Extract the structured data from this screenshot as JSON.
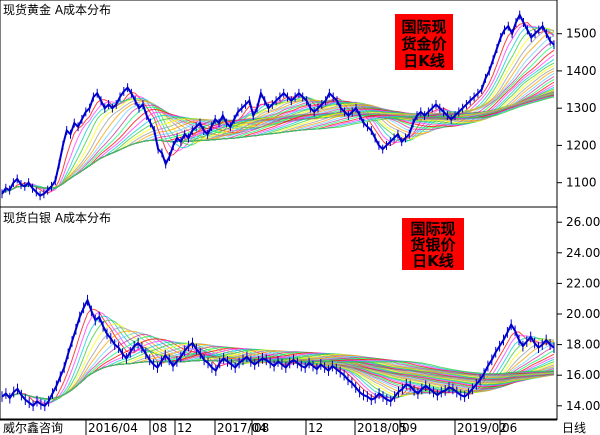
{
  "chart_data": [
    {
      "type": "line",
      "title": "现货黄金 A成本分布",
      "annotation": [
        "国际现",
        "货金价",
        "日K线"
      ],
      "yticks": [
        1100,
        1200,
        1300,
        1400,
        1500
      ],
      "ylim": [
        1040,
        1585
      ],
      "series": [
        {
          "type": "candlestick",
          "close": [
            1070,
            1085,
            1080,
            1100,
            1110,
            1095,
            1090,
            1100,
            1085,
            1075,
            1065,
            1070,
            1080,
            1090,
            1105,
            1150,
            1200,
            1240,
            1230,
            1260,
            1250,
            1270,
            1290,
            1300,
            1330,
            1340,
            1320,
            1300,
            1310,
            1300,
            1310,
            1330,
            1345,
            1355,
            1340,
            1320,
            1300,
            1310,
            1280,
            1260,
            1240,
            1190,
            1180,
            1150,
            1170,
            1200,
            1220,
            1210,
            1230,
            1220,
            1240,
            1250,
            1260,
            1240,
            1230,
            1250,
            1270,
            1260,
            1280,
            1260,
            1250,
            1270,
            1290,
            1300,
            1310,
            1320,
            1280,
            1300,
            1340,
            1320,
            1300,
            1310,
            1320,
            1330,
            1340,
            1330,
            1320,
            1330,
            1340,
            1330,
            1320,
            1300,
            1290,
            1300,
            1310,
            1320,
            1340,
            1330,
            1320,
            1300,
            1290,
            1280,
            1290,
            1300,
            1280,
            1260,
            1250,
            1240,
            1220,
            1200,
            1190,
            1200,
            1210,
            1220,
            1230,
            1210,
            1220,
            1230,
            1260,
            1280,
            1290,
            1280,
            1290,
            1300,
            1310,
            1300,
            1290,
            1280,
            1270,
            1280,
            1290,
            1300,
            1310,
            1320,
            1330,
            1340,
            1350,
            1380,
            1400,
            1430,
            1460,
            1490,
            1510,
            1520,
            1500,
            1530,
            1550,
            1530,
            1510,
            1490,
            1500,
            1510,
            1520,
            1500,
            1480,
            1470
          ]
        }
      ]
    },
    {
      "type": "line",
      "title": "现货白银 A成本分布",
      "annotation": [
        "国际现",
        "货银价",
        "日K线"
      ],
      "yticks": [
        14.0,
        16.0,
        18.0,
        20.0,
        22.0,
        24.0,
        26.0
      ],
      "ylim": [
        13.2,
        26.8
      ],
      "series": [
        {
          "type": "candlestick",
          "close": [
            14.6,
            14.8,
            14.5,
            14.9,
            15.1,
            14.7,
            14.4,
            14.2,
            14.0,
            14.3,
            14.1,
            14.0,
            14.3,
            14.8,
            15.3,
            15.9,
            16.5,
            17.4,
            18.2,
            19.0,
            19.8,
            20.4,
            20.9,
            20.2,
            19.6,
            19.8,
            19.2,
            18.7,
            18.4,
            18.0,
            17.8,
            17.4,
            17.1,
            17.5,
            17.9,
            18.1,
            17.8,
            17.4,
            17.0,
            16.7,
            16.5,
            16.9,
            17.3,
            17.0,
            16.6,
            16.9,
            17.2,
            17.6,
            17.9,
            18.1,
            17.7,
            17.4,
            17.0,
            16.8,
            16.5,
            16.3,
            16.8,
            17.1,
            16.9,
            16.7,
            16.5,
            16.8,
            17.0,
            17.2,
            16.9,
            16.7,
            16.9,
            17.1,
            17.0,
            16.8,
            16.6,
            16.9,
            16.7,
            16.5,
            16.8,
            17.0,
            16.8,
            16.6,
            16.5,
            16.8,
            16.6,
            16.4,
            16.7,
            16.5,
            16.3,
            16.6,
            16.4,
            16.2,
            16.0,
            15.7,
            15.5,
            15.2,
            14.9,
            14.7,
            14.6,
            14.4,
            14.5,
            14.8,
            14.6,
            14.4,
            14.3,
            14.6,
            14.9,
            15.1,
            15.4,
            15.3,
            15.0,
            14.8,
            15.1,
            15.3,
            15.1,
            14.9,
            14.7,
            14.9,
            15.0,
            15.2,
            15.1,
            14.9,
            14.7,
            14.6,
            14.8,
            15.1,
            15.4,
            15.7,
            16.1,
            16.6,
            17.0,
            17.5,
            17.9,
            18.3,
            18.8,
            19.3,
            18.9,
            18.3,
            17.9,
            18.2,
            18.5,
            18.1,
            17.8,
            18.0,
            18.3,
            18.0,
            17.8
          ]
        }
      ]
    }
  ],
  "x_axis": {
    "labels": [
      "威尔鑫咨询",
      "2016/04",
      "08",
      "12",
      "2017/04",
      "08",
      "12",
      "2018/05",
      "09",
      "2019/02",
      "06",
      "日线"
    ]
  },
  "colors": {
    "price_line": "#0000cc",
    "annotation_box": "#ff0000",
    "annotation_text": "#000000"
  }
}
